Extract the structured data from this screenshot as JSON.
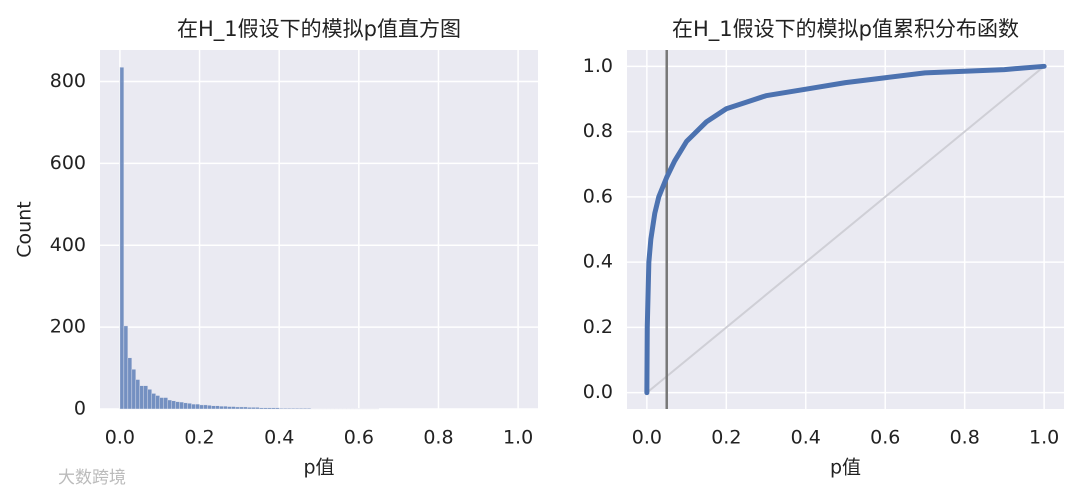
{
  "watermark": "大数跨境",
  "chart_data": [
    {
      "type": "histogram",
      "title": "在H_1假设下的模拟p值直方图",
      "x_label": "p值",
      "y_label": "Count",
      "color": "#4c72b0",
      "grid": true,
      "bins": [
        0,
        0.01,
        0.02,
        0.03,
        0.04,
        0.05,
        0.06,
        0.07,
        0.08,
        0.09,
        0.1,
        0.11,
        0.12,
        0.13,
        0.14,
        0.15,
        0.16,
        0.17,
        0.18,
        0.19,
        0.2,
        0.21,
        0.22,
        0.23,
        0.24,
        0.25,
        0.26,
        0.27,
        0.28,
        0.29,
        0.3,
        0.31,
        0.32,
        0.33,
        0.34,
        0.35,
        0.36,
        0.37,
        0.38,
        0.39,
        0.4,
        0.41,
        0.42,
        0.43,
        0.44,
        0.45,
        0.46,
        0.47,
        0.48,
        0.49,
        0.5,
        0.51,
        0.52,
        0.53,
        0.54,
        0.55,
        0.56,
        0.57,
        0.58,
        0.59,
        0.6,
        0.61,
        0.62,
        0.63,
        0.64,
        0.65
      ],
      "values": [
        835,
        203,
        125,
        97,
        72,
        57,
        57,
        48,
        38,
        33,
        28,
        28,
        22,
        20,
        18,
        17,
        15,
        14,
        12,
        12,
        10,
        10,
        9,
        8,
        8,
        7,
        7,
        6,
        6,
        5,
        5,
        5,
        4,
        4,
        4,
        3,
        3,
        3,
        3,
        3,
        2,
        2,
        2,
        2,
        2,
        2,
        2,
        2,
        1,
        1,
        1,
        1,
        1,
        1,
        1,
        1,
        1,
        1,
        1,
        1,
        1,
        1,
        1,
        1,
        1
      ],
      "xlim": [
        -0.05,
        1.05
      ],
      "ylim": [
        0,
        877
      ],
      "xticks": [
        {
          "value": 0,
          "label": "0.0"
        },
        {
          "value": 0.2,
          "label": "0.2"
        },
        {
          "value": 0.4,
          "label": "0.4"
        },
        {
          "value": 0.6,
          "label": "0.6"
        },
        {
          "value": 0.8,
          "label": "0.8"
        },
        {
          "value": 1,
          "label": "1.0"
        }
      ],
      "yticks": [
        0,
        200,
        400,
        600,
        800
      ]
    },
    {
      "type": "line",
      "title": "在H_1假设下的模拟p值累积分布函数",
      "x_label": "p值",
      "grid": true,
      "x": [
        0,
        0.001,
        0.005,
        0.01,
        0.02,
        0.03,
        0.05,
        0.07,
        0.1,
        0.15,
        0.2,
        0.25,
        0.3,
        0.4,
        0.5,
        0.6,
        0.7,
        0.8,
        0.9,
        1.0
      ],
      "series": [
        {
          "color": "#4c72b0",
          "values": [
            0,
            0.2,
            0.4,
            0.47,
            0.55,
            0.6,
            0.66,
            0.71,
            0.77,
            0.83,
            0.87,
            0.89,
            0.91,
            0.93,
            0.95,
            0.965,
            0.98,
            0.985,
            0.99,
            1.0
          ]
        }
      ],
      "vline": {
        "x": 0.05,
        "color": "#777777"
      },
      "reference_line": {
        "x": [
          0,
          1
        ],
        "y": [
          0,
          1
        ],
        "color": "#cfcfd6"
      },
      "xlim": [
        -0.05,
        1.05
      ],
      "ylim": [
        -0.05,
        1.05
      ],
      "xticks": [
        {
          "value": 0,
          "label": "0.0"
        },
        {
          "value": 0.2,
          "label": "0.2"
        },
        {
          "value": 0.4,
          "label": "0.4"
        },
        {
          "value": 0.6,
          "label": "0.6"
        },
        {
          "value": 0.8,
          "label": "0.8"
        },
        {
          "value": 1,
          "label": "1.0"
        }
      ],
      "yticks": [
        {
          "value": 0,
          "label": "0.0"
        },
        {
          "value": 0.2,
          "label": "0.2"
        },
        {
          "value": 0.4,
          "label": "0.4"
        },
        {
          "value": 0.6,
          "label": "0.6"
        },
        {
          "value": 0.8,
          "label": "0.8"
        },
        {
          "value": 1,
          "label": "1.0"
        }
      ]
    }
  ]
}
